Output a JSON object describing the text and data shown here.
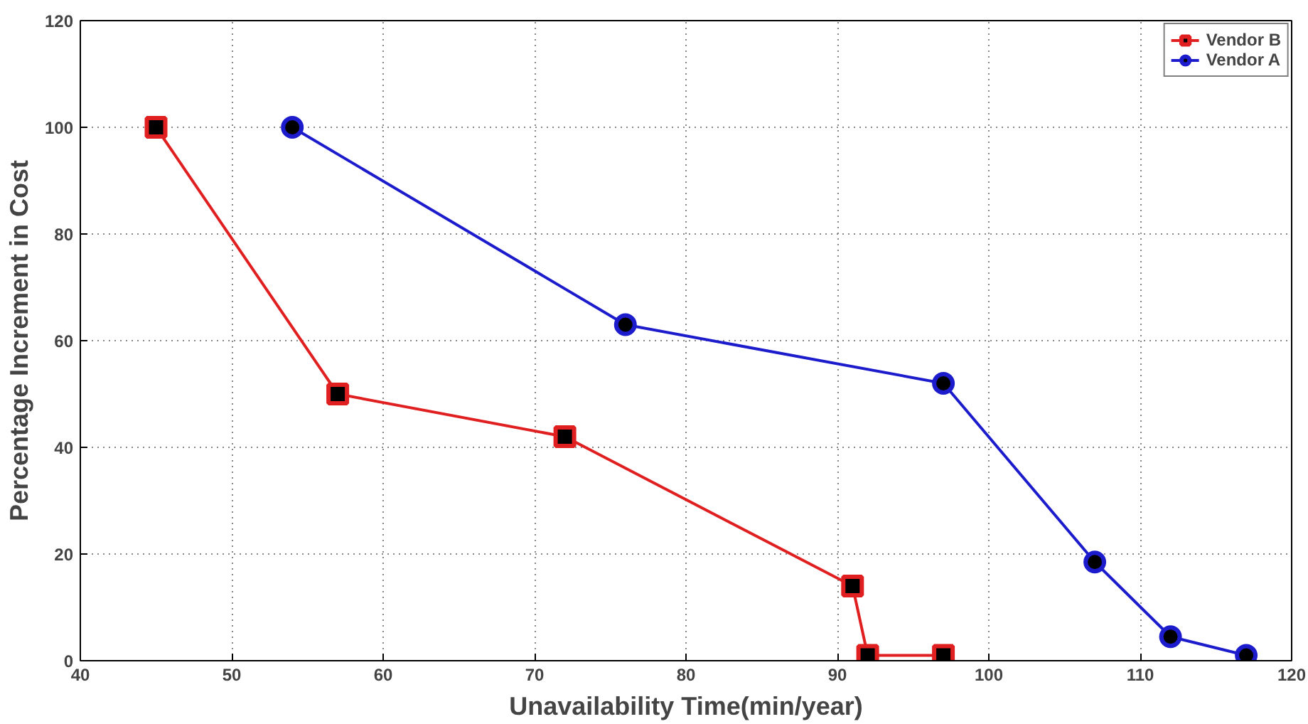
{
  "chart_data": {
    "type": "line",
    "xlabel": "Unavailability Time(min/year)",
    "ylabel": "Percentage Increment in Cost",
    "xlim": [
      40,
      120
    ],
    "xticks": [
      40,
      50,
      60,
      70,
      80,
      90,
      100,
      110,
      120
    ],
    "ylim": [
      0,
      120
    ],
    "yticks": [
      0,
      20,
      40,
      60,
      80,
      100,
      120
    ],
    "grid": true,
    "legend": "top right",
    "line_style": "solid",
    "series": [
      {
        "name": "Vendor B",
        "color": "#e02020",
        "marker": "square",
        "x": [
          45,
          57,
          72,
          91,
          92,
          97
        ],
        "values": [
          100,
          50,
          42,
          14,
          1,
          1
        ]
      },
      {
        "name": "Vendor A",
        "color": "#1c1ccc",
        "marker": "circle",
        "x": [
          54,
          76,
          97,
          107,
          112,
          117
        ],
        "values": [
          100,
          63,
          52,
          18.5,
          4.5,
          1
        ]
      }
    ]
  }
}
